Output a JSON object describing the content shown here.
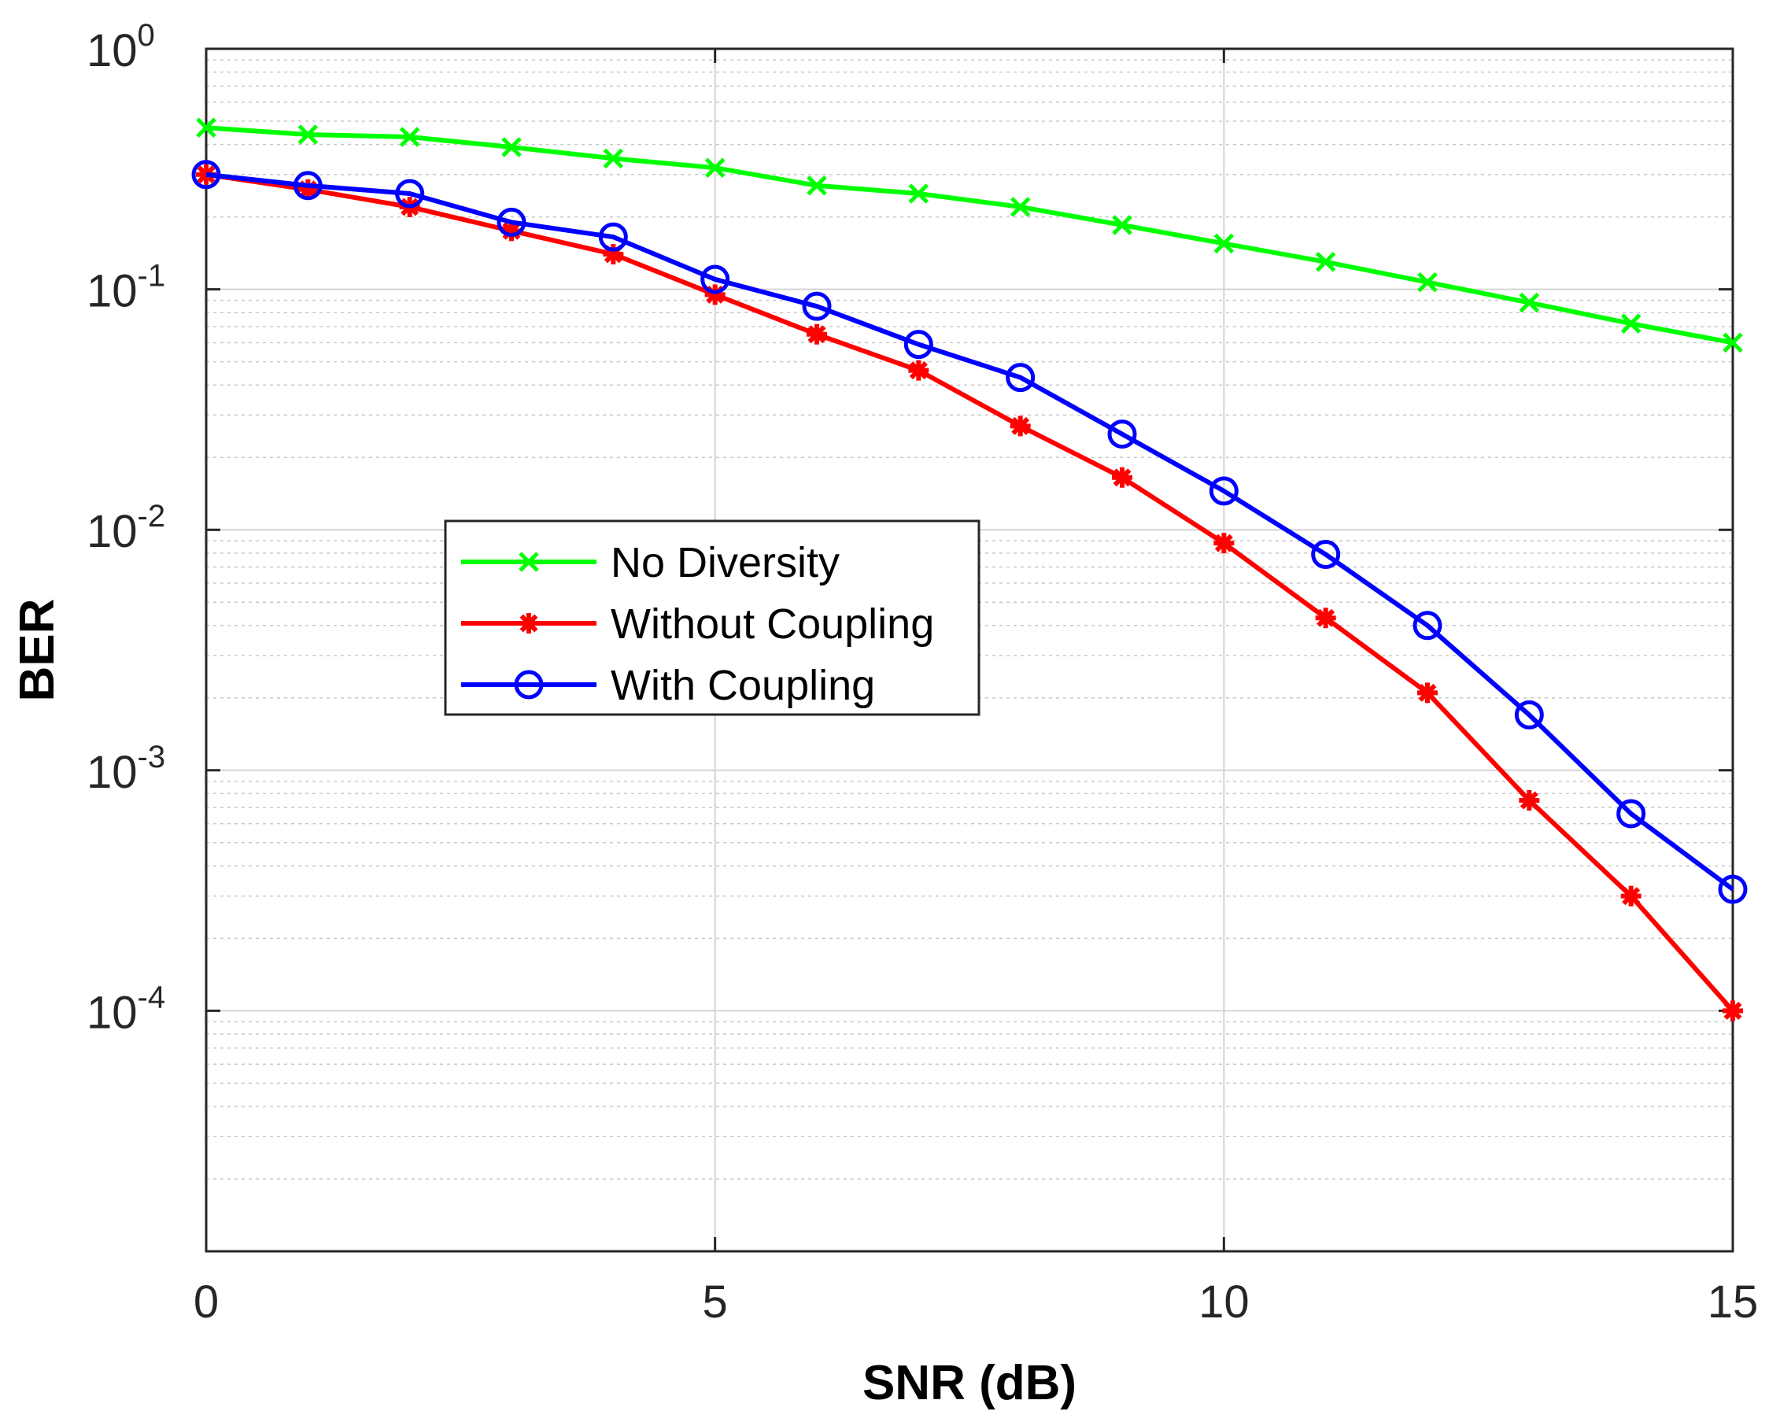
{
  "chart_data": {
    "type": "line",
    "title": "",
    "xlabel": "SNR (dB)",
    "ylabel": "BER",
    "xlim": [
      0,
      15
    ],
    "ylim": [
      1e-05,
      1
    ],
    "yscale": "log",
    "grid": true,
    "legend_position": "center-left",
    "x": [
      0,
      1,
      2,
      3,
      4,
      5,
      6,
      7,
      8,
      9,
      10,
      11,
      12,
      13,
      14,
      15
    ],
    "x_ticks": [
      "0",
      "5",
      "10",
      "15"
    ],
    "y_ticks": [
      {
        "base": "10",
        "exp": "0"
      },
      {
        "base": "10",
        "exp": "-1"
      },
      {
        "base": "10",
        "exp": "-2"
      },
      {
        "base": "10",
        "exp": "-3"
      },
      {
        "base": "10",
        "exp": "-4"
      }
    ],
    "series": [
      {
        "name": "No Diversity",
        "color": "#00ff00",
        "marker": "x",
        "values": [
          0.47,
          0.44,
          0.43,
          0.39,
          0.35,
          0.32,
          0.27,
          0.25,
          0.22,
          0.185,
          0.155,
          0.13,
          0.107,
          0.088,
          0.072,
          0.06
        ]
      },
      {
        "name": "Without Coupling",
        "color": "#ff0000",
        "marker": "asterisk",
        "values": [
          0.3,
          0.26,
          0.22,
          0.175,
          0.14,
          0.095,
          0.065,
          0.046,
          0.027,
          0.0165,
          0.0088,
          0.0043,
          0.0021,
          0.00075,
          0.0003,
          0.0001
        ]
      },
      {
        "name": "With Coupling",
        "color": "#0000ff",
        "marker": "circle",
        "values": [
          0.3,
          0.27,
          0.25,
          0.19,
          0.165,
          0.11,
          0.085,
          0.059,
          0.043,
          0.025,
          0.0145,
          0.0079,
          0.004,
          0.0017,
          0.00066,
          0.00032
        ]
      }
    ]
  }
}
